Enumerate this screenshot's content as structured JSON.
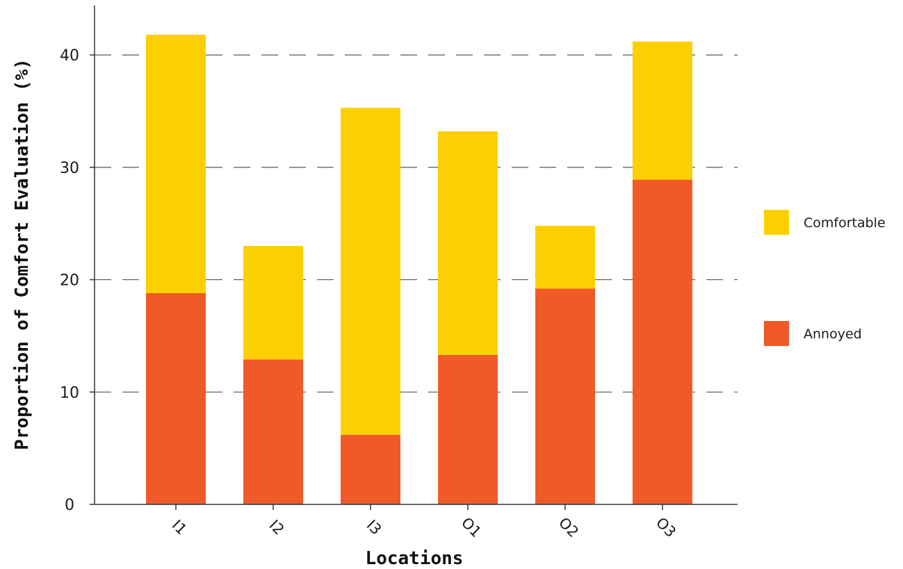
{
  "chart_data": {
    "type": "bar",
    "stacked": true,
    "categories": [
      "I1",
      "I2",
      "I3",
      "O1",
      "O2",
      "O3"
    ],
    "series": [
      {
        "name": "Annoyed",
        "color": "#f05a28",
        "values": [
          18.8,
          12.9,
          6.2,
          13.3,
          19.2,
          28.9
        ]
      },
      {
        "name": "Comfortable",
        "color": "#fcd000",
        "values": [
          23.0,
          10.1,
          29.1,
          19.9,
          5.6,
          12.3
        ]
      }
    ],
    "xlabel": "Locations",
    "ylabel": "Proportion of Comfort Evaluation (%)",
    "ylim": [
      0,
      44.4
    ],
    "yticks": [
      0,
      10,
      20,
      30,
      40
    ],
    "grid": "dashed-horizontal",
    "legend": {
      "placement": "right",
      "items": [
        {
          "label": "Comfortable",
          "color": "#fcd000"
        },
        {
          "label": "Annoyed",
          "color": "#f05a28"
        }
      ]
    }
  }
}
